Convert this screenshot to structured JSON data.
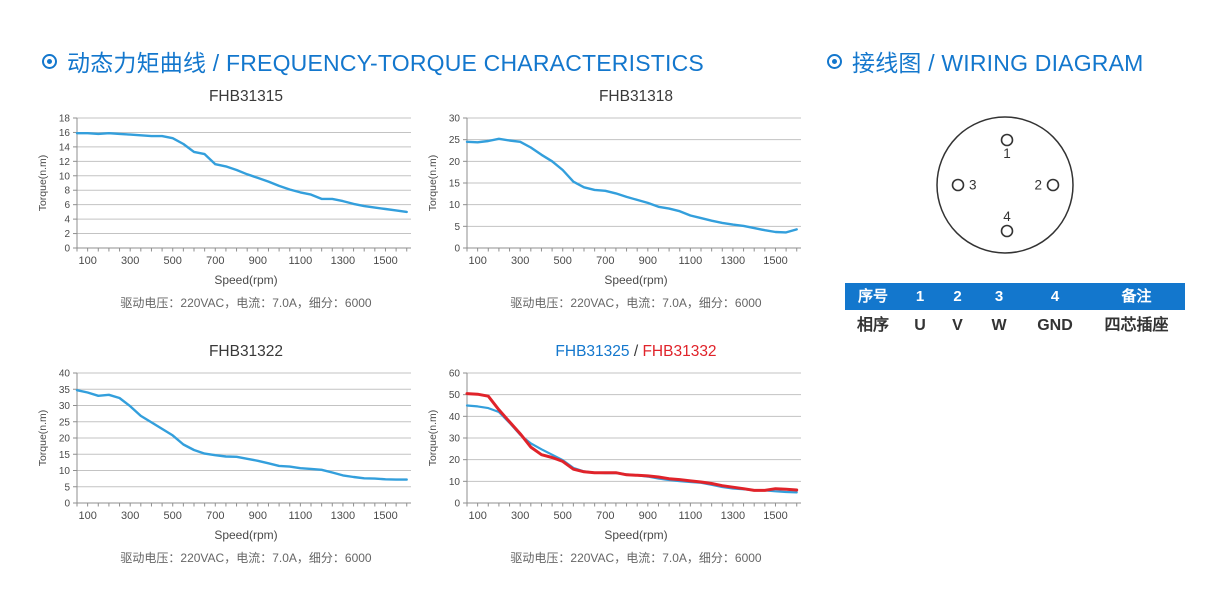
{
  "headings": {
    "left": {
      "text": "动态力矩曲线 / FREQUENCY-TORQUE CHARACTERISTICS"
    },
    "right": {
      "text": "接线图 / WIRING DIAGRAM"
    }
  },
  "colors": {
    "accent_blue": "#1377CD",
    "line_blue": "#339FDC",
    "line_red": "#E0232A",
    "grid": "#c3c3c3",
    "axis": "#8f8f8f",
    "tick_text": "#4a4a4a",
    "title_text": "#3a3a3a",
    "caption_text": "#666666",
    "table_header_bg": "#1377CD",
    "table_header_text": "#ffffff",
    "table_body_text": "#333333",
    "diagram_stroke": "#333333"
  },
  "chart_data": [
    {
      "type": "line",
      "title_parts": [
        {
          "text": "FHB31315",
          "color": "#3a3a3a"
        }
      ],
      "xlabel": "Speed(rpm)",
      "ylabel": "Torque(n.m)",
      "caption": "驱动电压：220VAC，电流：7.0A，细分：6000",
      "xlim": [
        50,
        1620
      ],
      "ylim": [
        0,
        18
      ],
      "ytick_step": 2,
      "xticks": [
        100,
        300,
        500,
        700,
        900,
        1100,
        1300,
        1500
      ],
      "xminor_step": 50,
      "grid": "horizontal",
      "legend": "none",
      "x": [
        50,
        100,
        150,
        200,
        250,
        300,
        350,
        400,
        450,
        500,
        550,
        600,
        650,
        700,
        750,
        800,
        850,
        900,
        950,
        1000,
        1050,
        1100,
        1150,
        1200,
        1250,
        1300,
        1350,
        1400,
        1450,
        1500,
        1550,
        1600
      ],
      "series": [
        {
          "name": "FHB31315",
          "color": "#339FDC",
          "stroke_width": 2.4,
          "values": [
            15.9,
            15.9,
            15.8,
            15.9,
            15.8,
            15.7,
            15.6,
            15.5,
            15.5,
            15.2,
            14.4,
            13.3,
            13.0,
            11.6,
            11.3,
            10.8,
            10.2,
            9.7,
            9.2,
            8.6,
            8.1,
            7.7,
            7.4,
            6.8,
            6.8,
            6.5,
            6.1,
            5.8,
            5.6,
            5.4,
            5.2,
            5.0
          ]
        }
      ]
    },
    {
      "type": "line",
      "title_parts": [
        {
          "text": "FHB31318",
          "color": "#3a3a3a"
        }
      ],
      "xlabel": "Speed(rpm)",
      "ylabel": "Torque(n.m)",
      "caption": "驱动电压：220VAC，电流：7.0A，细分：6000",
      "xlim": [
        50,
        1620
      ],
      "ylim": [
        0,
        30
      ],
      "ytick_step": 5,
      "xticks": [
        100,
        300,
        500,
        700,
        900,
        1100,
        1300,
        1500
      ],
      "xminor_step": 50,
      "grid": "horizontal",
      "legend": "none",
      "x": [
        50,
        100,
        150,
        200,
        250,
        300,
        350,
        400,
        450,
        500,
        550,
        600,
        650,
        700,
        750,
        800,
        850,
        900,
        950,
        1000,
        1050,
        1100,
        1150,
        1200,
        1250,
        1300,
        1350,
        1400,
        1450,
        1500,
        1550,
        1600
      ],
      "series": [
        {
          "name": "FHB31318",
          "color": "#339FDC",
          "stroke_width": 2.4,
          "values": [
            24.5,
            24.4,
            24.7,
            25.2,
            24.8,
            24.5,
            23.2,
            21.5,
            20.0,
            18.0,
            15.3,
            14.0,
            13.4,
            13.2,
            12.6,
            11.8,
            11.1,
            10.4,
            9.5,
            9.1,
            8.5,
            7.5,
            6.9,
            6.3,
            5.8,
            5.4,
            5.1,
            4.6,
            4.1,
            3.7,
            3.6,
            4.3
          ]
        }
      ]
    },
    {
      "type": "line",
      "title_parts": [
        {
          "text": "FHB31322",
          "color": "#3a3a3a"
        }
      ],
      "xlabel": "Speed(rpm)",
      "ylabel": "Torque(n.m)",
      "caption": "驱动电压：220VAC，电流：7.0A，细分：6000",
      "xlim": [
        50,
        1620
      ],
      "ylim": [
        0,
        40
      ],
      "ytick_step": 5,
      "xticks": [
        100,
        300,
        500,
        700,
        900,
        1100,
        1300,
        1500
      ],
      "xminor_step": 50,
      "grid": "horizontal",
      "legend": "none",
      "x": [
        50,
        100,
        150,
        200,
        250,
        300,
        350,
        400,
        450,
        500,
        550,
        600,
        650,
        700,
        750,
        800,
        850,
        900,
        950,
        1000,
        1050,
        1100,
        1150,
        1200,
        1250,
        1300,
        1350,
        1400,
        1450,
        1500,
        1550,
        1600
      ],
      "series": [
        {
          "name": "FHB31322",
          "color": "#339FDC",
          "stroke_width": 2.4,
          "values": [
            34.7,
            34.0,
            33.0,
            33.3,
            32.3,
            29.8,
            26.8,
            24.8,
            22.8,
            20.8,
            18.0,
            16.3,
            15.2,
            14.7,
            14.3,
            14.2,
            13.6,
            13.0,
            12.2,
            11.4,
            11.2,
            10.7,
            10.5,
            10.2,
            9.4,
            8.5,
            8.0,
            7.6,
            7.5,
            7.3,
            7.2,
            7.2
          ]
        }
      ]
    },
    {
      "type": "line",
      "title_parts": [
        {
          "text": "FHB31325",
          "color": "#1377CD"
        },
        {
          "text": " / ",
          "color": "#3a3a3a"
        },
        {
          "text": "FHB31332",
          "color": "#E0232A"
        }
      ],
      "xlabel": "Speed(rpm)",
      "ylabel": "Torque(n.m)",
      "caption": "驱动电压：220VAC，电流：7.0A，细分：6000",
      "xlim": [
        50,
        1620
      ],
      "ylim": [
        0,
        60
      ],
      "ytick_step": 10,
      "xticks": [
        100,
        300,
        500,
        700,
        900,
        1100,
        1300,
        1500
      ],
      "xminor_step": 50,
      "grid": "horizontal",
      "legend": "none",
      "x": [
        50,
        100,
        150,
        200,
        250,
        300,
        350,
        400,
        450,
        500,
        550,
        600,
        650,
        700,
        750,
        800,
        850,
        900,
        950,
        1000,
        1050,
        1100,
        1150,
        1200,
        1250,
        1300,
        1350,
        1400,
        1450,
        1500,
        1550,
        1600
      ],
      "series": [
        {
          "name": "FHB31325",
          "color": "#339FDC",
          "stroke_width": 2.2,
          "values": [
            45.0,
            44.6,
            43.8,
            42.0,
            37.0,
            31.5,
            27.5,
            24.8,
            22.3,
            19.8,
            16.2,
            14.6,
            14.0,
            13.8,
            13.8,
            13.2,
            12.8,
            12.2,
            11.3,
            10.6,
            10.1,
            9.7,
            9.3,
            8.4,
            7.4,
            6.7,
            6.3,
            5.9,
            5.8,
            5.4,
            5.1,
            4.9
          ]
        },
        {
          "name": "FHB31332",
          "color": "#E0232A",
          "stroke_width": 3.0,
          "values": [
            50.5,
            50.2,
            49.3,
            43.0,
            37.5,
            32.0,
            25.8,
            22.3,
            21.0,
            19.2,
            15.6,
            14.4,
            14.0,
            14.0,
            14.0,
            13.0,
            12.8,
            12.5,
            12.0,
            11.2,
            10.8,
            10.2,
            9.7,
            9.0,
            8.0,
            7.3,
            6.6,
            5.8,
            5.8,
            6.6,
            6.3,
            6.0
          ]
        }
      ]
    }
  ],
  "wiring": {
    "pins": [
      {
        "id": "1",
        "position": "top"
      },
      {
        "id": "2",
        "position": "right"
      },
      {
        "id": "3",
        "position": "left"
      },
      {
        "id": "4",
        "position": "bottom"
      }
    ],
    "table": {
      "header": [
        "序号",
        "1",
        "2",
        "3",
        "4",
        "备注"
      ],
      "rows": [
        [
          "相序",
          "U",
          "V",
          "W",
          "GND",
          "四芯插座"
        ]
      ]
    }
  }
}
